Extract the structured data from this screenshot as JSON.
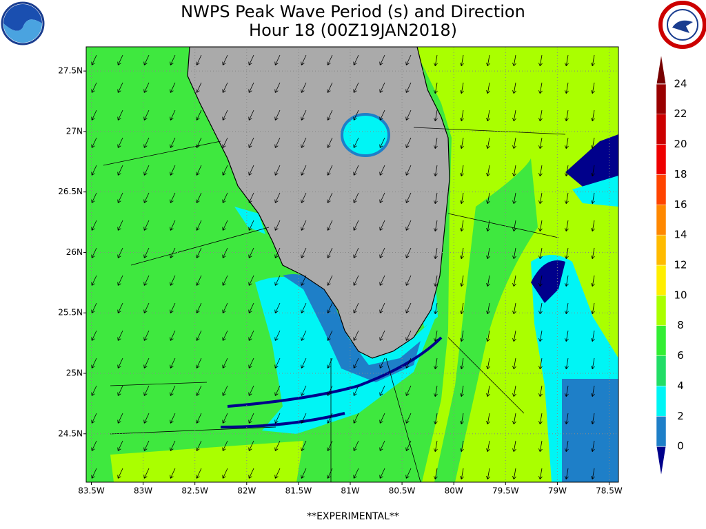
{
  "title": "NWPS Peak Wave Period (s) and Direction",
  "subtitle": "Hour 18 (00Z19JAN2018)",
  "footer": "**EXPERIMENTAL**",
  "map": {
    "lonlim": [
      -83.55,
      -78.41
    ],
    "latlim": [
      24.1,
      27.7
    ],
    "lon_ticks": [
      {
        "value": -83.5,
        "label": "83.5W"
      },
      {
        "value": -83,
        "label": "83W"
      },
      {
        "value": -82.5,
        "label": "82.5W"
      },
      {
        "value": -82,
        "label": "82W"
      },
      {
        "value": -81.5,
        "label": "81.5W"
      },
      {
        "value": -81,
        "label": "81W"
      },
      {
        "value": -80.5,
        "label": "80.5W"
      },
      {
        "value": -80,
        "label": "80W"
      },
      {
        "value": -79.5,
        "label": "79.5W"
      },
      {
        "value": -79,
        "label": "79W"
      },
      {
        "value": -78.5,
        "label": "78.5W"
      }
    ],
    "lat_ticks": [
      {
        "value": 24.5,
        "label": "24.5N"
      },
      {
        "value": 25,
        "label": "25N"
      },
      {
        "value": 25.5,
        "label": "25.5N"
      },
      {
        "value": 26,
        "label": "26N"
      },
      {
        "value": 26.5,
        "label": "26.5N"
      },
      {
        "value": 27,
        "label": "27N"
      },
      {
        "value": 27.5,
        "label": "27.5N"
      }
    ]
  },
  "colorbar": {
    "lim": [
      -2,
      26
    ],
    "ticks": [
      0,
      2,
      4,
      6,
      8,
      10,
      12,
      14,
      16,
      18,
      20,
      22,
      24
    ],
    "colors": [
      "#00008b",
      "#1e7fc8",
      "#00f5f5",
      "#22dd66",
      "#33ee33",
      "#aaff00",
      "#ffee00",
      "#ffbb00",
      "#ff8800",
      "#ff4400",
      "#ee0000",
      "#cc0000",
      "#990000",
      "#770000"
    ]
  }
}
